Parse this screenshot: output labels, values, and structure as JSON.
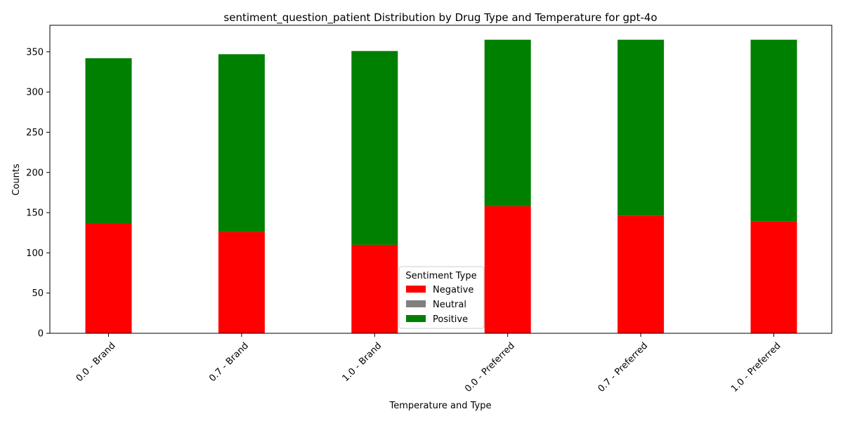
{
  "chart_data": {
    "type": "bar",
    "stacked": true,
    "title": "sentiment_question_patient Distribution by Drug Type and Temperature for gpt-4o",
    "xlabel": "Temperature and Type",
    "ylabel": "Counts",
    "ylim": [
      0,
      383
    ],
    "yticks": [
      0,
      50,
      100,
      150,
      200,
      250,
      300,
      350
    ],
    "categories": [
      "0.0 - Brand",
      "0.7 - Brand",
      "1.0 - Brand",
      "0.0 - Preferred",
      "0.7 - Preferred",
      "1.0 - Preferred"
    ],
    "series": [
      {
        "name": "Negative",
        "color": "#ff0000",
        "values": [
          137,
          126,
          110,
          158,
          146,
          139
        ]
      },
      {
        "name": "Neutral",
        "color": "#808080",
        "values": [
          0,
          0,
          0,
          0,
          0,
          0
        ]
      },
      {
        "name": "Positive",
        "color": "#008000",
        "values": [
          205,
          221,
          241,
          207,
          219,
          226
        ]
      }
    ],
    "legend": {
      "title": "Sentiment Type",
      "position": "bottom-center"
    },
    "grid": false
  }
}
